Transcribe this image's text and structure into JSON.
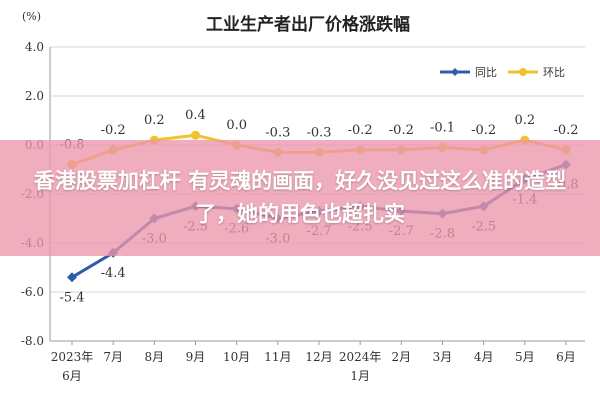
{
  "chart_data": {
    "type": "line",
    "title": "工业生产者出厂价格涨跌幅",
    "y_unit": "(%)",
    "ylim": [
      -8.0,
      4.0
    ],
    "yticks": [
      "4.0",
      "2.0",
      "0.0",
      "-2.0",
      "-4.0",
      "-6.0",
      "-8.0"
    ],
    "grid": true,
    "legend_position": "top-right",
    "categories": [
      {
        "line1": "2023年",
        "line2": "6月"
      },
      {
        "line1": "7月",
        "line2": ""
      },
      {
        "line1": "8月",
        "line2": ""
      },
      {
        "line1": "9月",
        "line2": ""
      },
      {
        "line1": "10月",
        "line2": ""
      },
      {
        "line1": "11月",
        "line2": ""
      },
      {
        "line1": "12月",
        "line2": ""
      },
      {
        "line1": "2024年",
        "line2": "1月"
      },
      {
        "line1": "2月",
        "line2": ""
      },
      {
        "line1": "3月",
        "line2": ""
      },
      {
        "line1": "4月",
        "line2": ""
      },
      {
        "line1": "5月",
        "line2": ""
      },
      {
        "line1": "6月",
        "line2": ""
      }
    ],
    "series": [
      {
        "name": "同比",
        "color": "#2e5ca8",
        "marker": "diamond",
        "values": [
          -5.4,
          -4.4,
          -3.0,
          -2.5,
          -2.6,
          -3.0,
          -2.7,
          -2.5,
          -2.7,
          -2.8,
          -2.5,
          -1.4,
          -0.8
        ],
        "labels": [
          "-5.4",
          "-4.4",
          "-3.0",
          "-2.5",
          "-2.6",
          "-3.0",
          "-2.7",
          "-2.5",
          "-2.7",
          "-2.8",
          "-2.5",
          "-1.4",
          "-0.8"
        ]
      },
      {
        "name": "环比",
        "color": "#f2c12e",
        "marker": "circle",
        "values": [
          -0.8,
          -0.2,
          0.2,
          0.4,
          0.0,
          -0.3,
          -0.3,
          -0.2,
          -0.2,
          -0.1,
          -0.2,
          0.2,
          -0.2
        ],
        "labels": [
          "-0.8",
          "-0.2",
          "0.2",
          "0.4",
          "0.0",
          "-0.3",
          "-0.3",
          "-0.2",
          "-0.2",
          "-0.1",
          "-0.2",
          "0.2",
          "-0.2"
        ]
      }
    ]
  },
  "banner": {
    "text": "香港股票加杠杆 有灵魂的画面，好久没见过这么准的造型了，她的用色也超扎实",
    "background": "#ec96ac"
  }
}
